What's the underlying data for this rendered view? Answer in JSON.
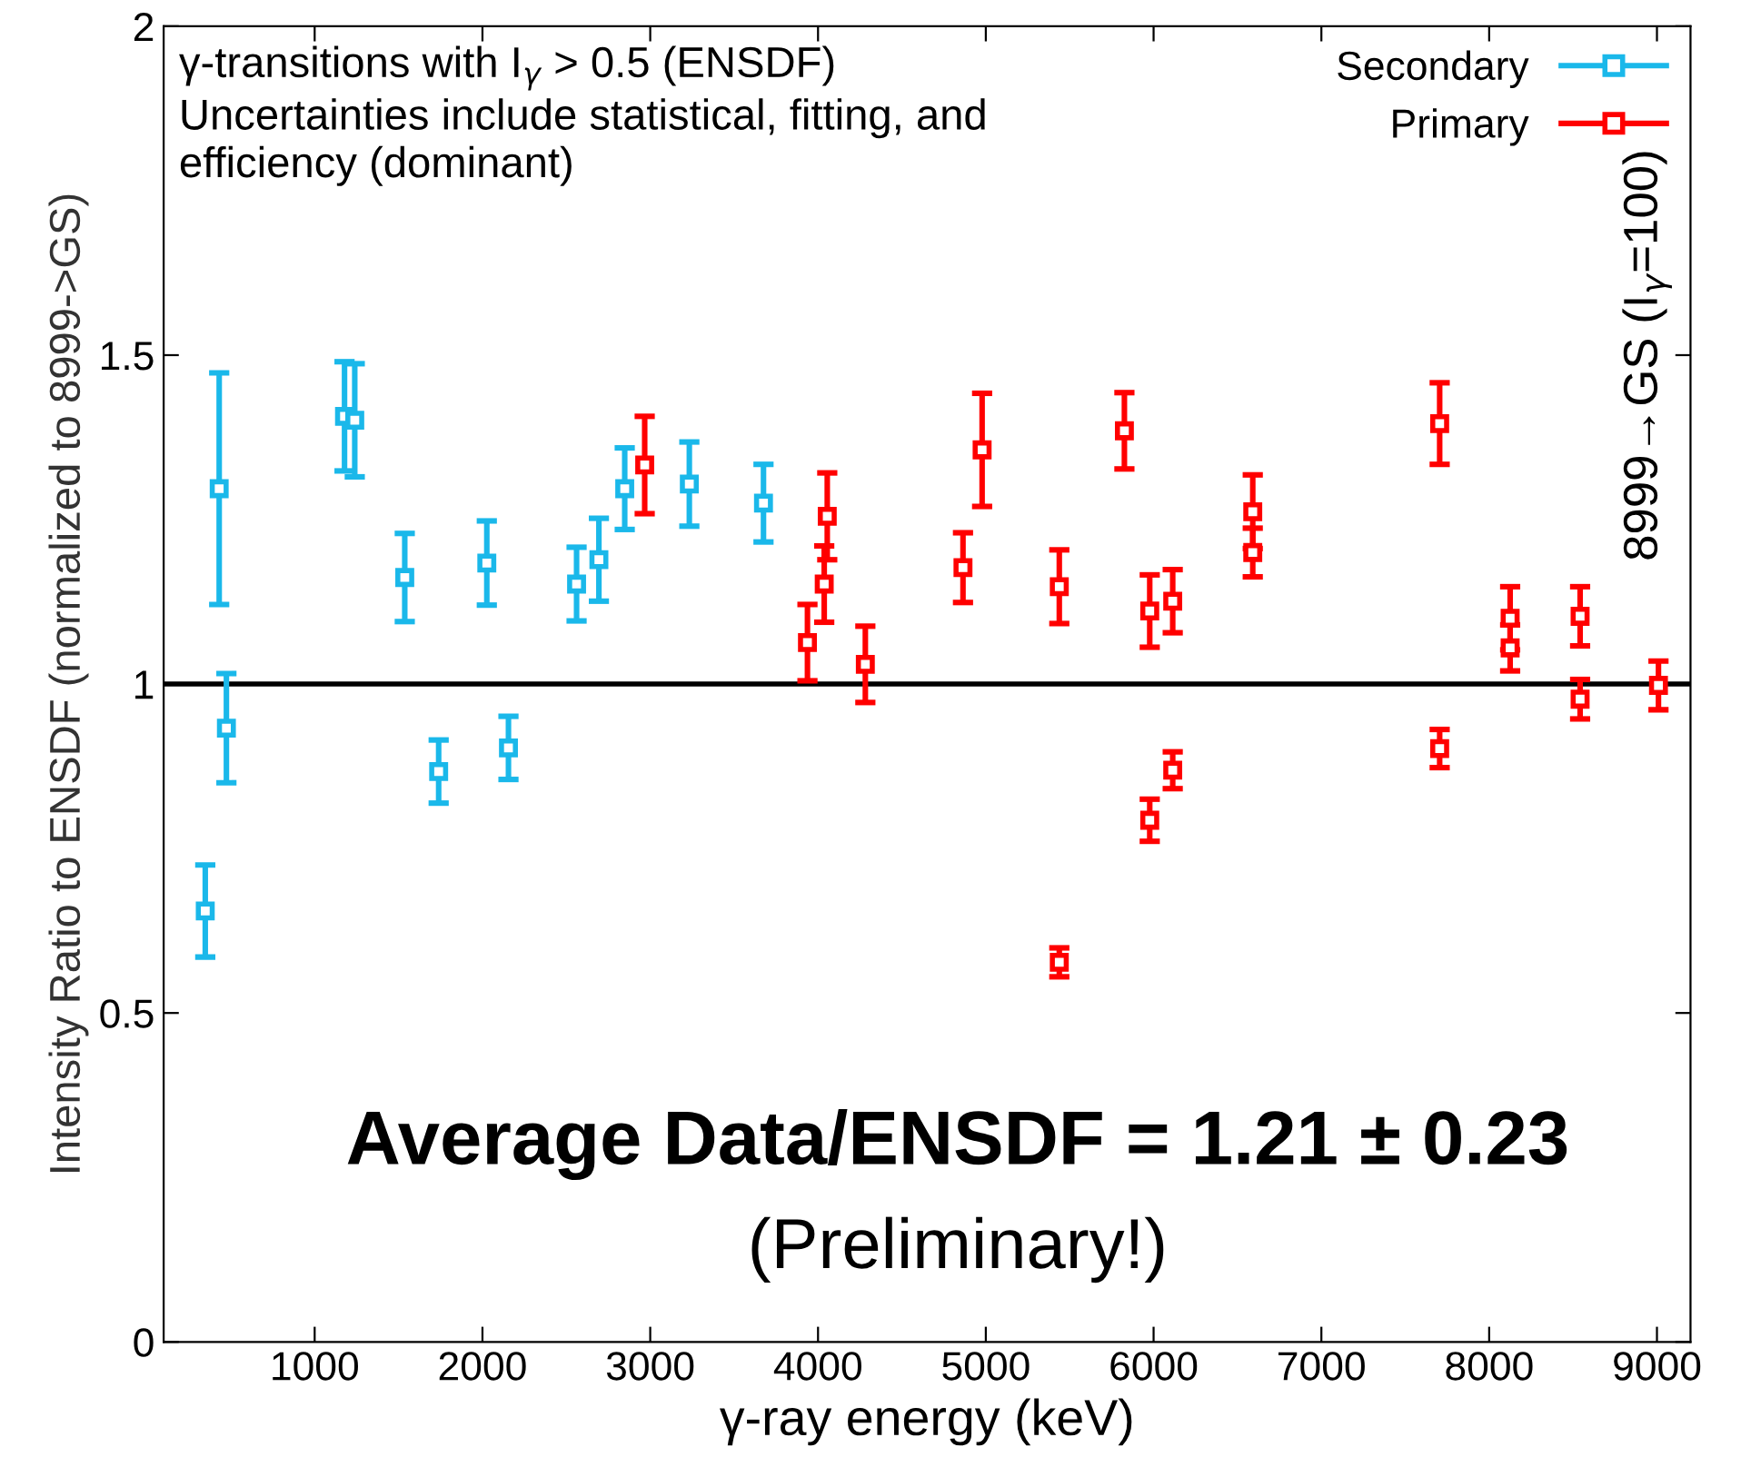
{
  "chart_data": {
    "type": "scatter",
    "xlabel": "γ-ray energy (keV)",
    "ylabel": "Intensity Ratio to ENSDF (normalized to 8999->GS)",
    "xlim": [
      100,
      9200
    ],
    "xticks": [
      1000,
      2000,
      3000,
      4000,
      5000,
      6000,
      7000,
      8000,
      9000
    ],
    "ylim": [
      0,
      2
    ],
    "yticks": [
      0,
      0.5,
      1,
      1.5,
      2
    ],
    "marker": "square",
    "grid": false,
    "legend": "top right",
    "ref_lines": [
      {
        "axis": "y",
        "value": 1,
        "color": "#000000"
      }
    ],
    "series": [
      {
        "name": "Secondary",
        "color": "#1ab8ea",
        "x": [
          348,
          431,
          474,
          1178,
          1239,
          1537,
          1739,
          2026,
          2155,
          2561,
          2694,
          2848,
          3233,
          3675
        ],
        "values": [
          0.655,
          1.297,
          0.933,
          1.407,
          1.401,
          1.162,
          0.867,
          1.184,
          0.903,
          1.152,
          1.189,
          1.297,
          1.304,
          1.275
        ],
        "errors": [
          0.07,
          0.176,
          0.083,
          0.083,
          0.086,
          0.067,
          0.048,
          0.064,
          0.048,
          0.056,
          0.063,
          0.062,
          0.064,
          0.059
        ]
      },
      {
        "name": "Primary",
        "color": "#ff0000",
        "x": [
          2967,
          3937,
          4037,
          4055,
          4282,
          4864,
          4978,
          5438,
          5826,
          5977,
          6114,
          6591,
          6591,
          5438,
          5977,
          6114,
          7705,
          7705,
          8125,
          8125,
          8542,
          8542,
          9009
        ],
        "values": [
          1.333,
          1.063,
          1.152,
          1.255,
          1.03,
          1.177,
          1.356,
          1.148,
          1.385,
          1.111,
          1.126,
          1.262,
          1.2,
          0.577,
          0.793,
          0.869,
          1.396,
          0.902,
          1.1,
          1.055,
          1.103,
          0.977,
          0.998
        ],
        "errors": [
          0.074,
          0.058,
          0.058,
          0.066,
          0.058,
          0.053,
          0.086,
          0.056,
          0.058,
          0.055,
          0.048,
          0.056,
          0.037,
          0.022,
          0.032,
          0.028,
          0.062,
          0.029,
          0.048,
          0.035,
          0.045,
          0.03,
          0.037
        ]
      }
    ],
    "annotations": [
      "γ-transitions with I$_{γ}$ > 0.5 (ENSDF)\nUncertainties include statistical, fitting, and\nefficiency (dominant)",
      "Average Data/ENSDF = 1.21 ± 0.23",
      "(Preliminary!)",
      "8999→GS (I$_{γ}$=100)"
    ]
  }
}
